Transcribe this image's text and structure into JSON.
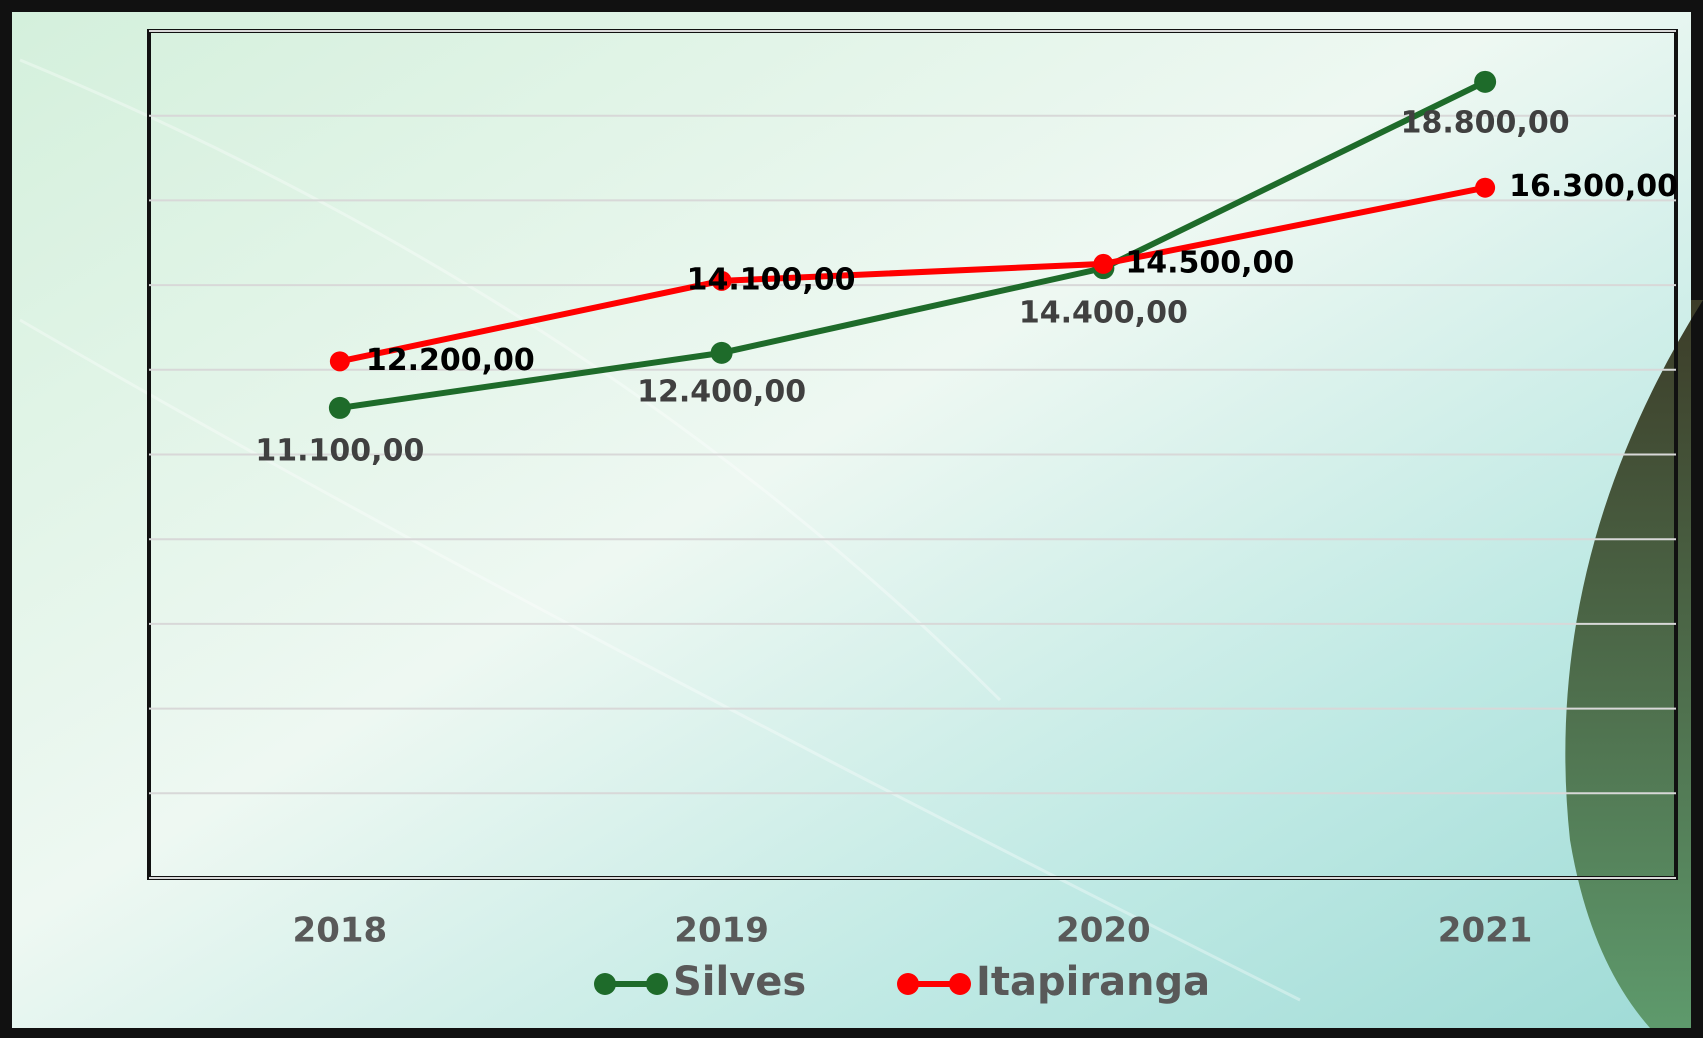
{
  "chart_data": {
    "type": "line",
    "categories": [
      "2018",
      "2019",
      "2020",
      "2021"
    ],
    "series": [
      {
        "name": "Silves",
        "color": "#1e6b2a",
        "values": [
          11100,
          12400,
          14400,
          18800
        ],
        "value_labels": [
          "11.100,00",
          "12.400,00",
          "14.400,00",
          "18.800,00"
        ]
      },
      {
        "name": "Itapiranga",
        "color": "#ff0000",
        "values": [
          12200,
          14100,
          14500,
          16300
        ],
        "value_labels": [
          "12.200,00",
          "14.100,00",
          "14.500,00",
          "16.300,00"
        ]
      }
    ],
    "ylim": [
      0,
      20000
    ],
    "yticks": [
      0,
      2000,
      4000,
      6000,
      8000,
      10000,
      12000,
      14000,
      16000,
      18000,
      20000
    ],
    "grid": true
  }
}
